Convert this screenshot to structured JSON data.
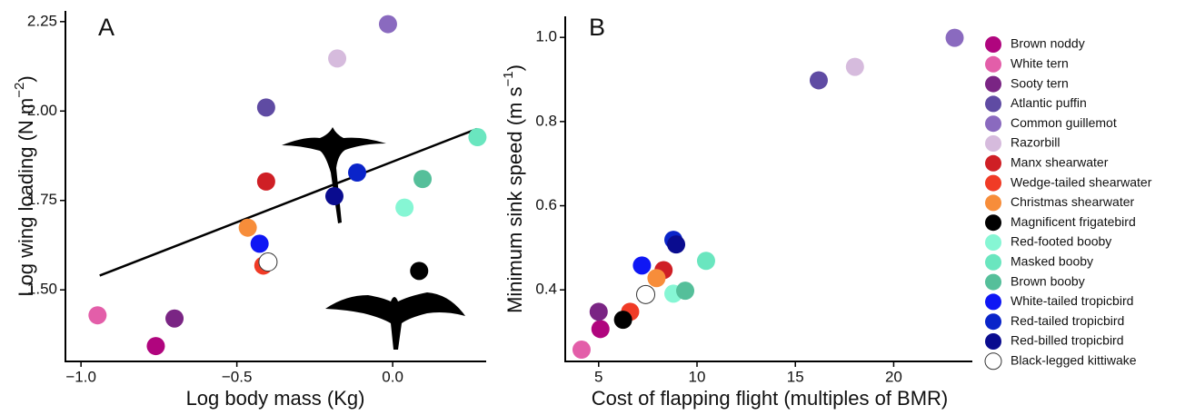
{
  "legend": {
    "entries": [
      {
        "name": "Brown noddy",
        "color": "#b0057e"
      },
      {
        "name": "White tern",
        "color": "#e35ea9"
      },
      {
        "name": "Sooty tern",
        "color": "#7a2584"
      },
      {
        "name": "Atlantic puffin",
        "color": "#5f4ba3"
      },
      {
        "name": "Common guillemot",
        "color": "#8a6abf"
      },
      {
        "name": "Razorbill",
        "color": "#d6bbdd"
      },
      {
        "name": "Manx shearwater",
        "color": "#cf1f25"
      },
      {
        "name": "Wedge-tailed shearwater",
        "color": "#f03b26"
      },
      {
        "name": "Christmas shearwater",
        "color": "#f78d3a"
      },
      {
        "name": "Magnificent frigatebird",
        "color": "#000000"
      },
      {
        "name": "Red-footed booby",
        "color": "#86f6d4"
      },
      {
        "name": "Masked booby",
        "color": "#6ae6bf"
      },
      {
        "name": "Brown booby",
        "color": "#55bf9a"
      },
      {
        "name": "White-tailed tropicbird",
        "color": "#0f17f4"
      },
      {
        "name": "Red-tailed tropicbird",
        "color": "#0a24c9"
      },
      {
        "name": "Red-billed tropicbird",
        "color": "#0a0c8f"
      },
      {
        "name": "Black-legged kittiwake",
        "color": "#ffffff"
      }
    ]
  },
  "chart_data": [
    {
      "type": "scatter",
      "panel_label": "A",
      "x_label": "Log body mass (Kg)",
      "y_label": "Log wing loading (N m",
      "y_label_sup": "−2",
      "y_label_end": ")",
      "x": [
        -0.76,
        -0.947,
        -0.7,
        -0.406,
        -0.015,
        -0.178,
        -0.406,
        -0.415,
        -0.465,
        0.085,
        0.038,
        0.272,
        0.096,
        -0.427,
        -0.114,
        -0.187,
        -0.4
      ],
      "values": [
        1.343,
        1.429,
        1.42,
        2.01,
        2.243,
        2.147,
        1.803,
        1.568,
        1.674,
        1.553,
        1.73,
        1.927,
        1.81,
        1.629,
        1.828,
        1.762,
        1.578
      ],
      "xlim": [
        -1.05,
        0.3
      ],
      "ylim": [
        1.3,
        2.28
      ],
      "xticks": [
        {
          "value": -1.0,
          "label": "−1.0"
        },
        {
          "value": -0.5,
          "label": "−0.5"
        },
        {
          "value": 0,
          "label": "0.0"
        }
      ],
      "yticks": [
        {
          "value": 1.5,
          "label": "1.50"
        },
        1.75,
        {
          "value": 2.0,
          "label": "2.00"
        },
        2.25
      ],
      "trend": {
        "x": [
          -0.94,
          0.27
        ],
        "y": [
          1.54,
          1.95
        ]
      }
    },
    {
      "type": "scatter",
      "panel_label": "B",
      "x_label": "Cost of flapping flight (multiples of BMR)",
      "y_label": "Minimum sink speed (m s",
      "y_label_sup": "−1",
      "y_label_end": ")",
      "x": [
        5.09,
        4.13,
        5.0,
        16.19,
        23.1,
        18.03,
        8.3,
        6.6,
        7.94,
        6.24,
        8.8,
        10.46,
        9.4,
        7.2,
        8.8,
        8.94,
        7.39
      ],
      "values": [
        0.307,
        0.258,
        0.348,
        0.898,
        0.999,
        0.93,
        0.447,
        0.348,
        0.428,
        0.329,
        0.391,
        0.469,
        0.398,
        0.458,
        0.519,
        0.508,
        0.389
      ],
      "xlim": [
        3.3,
        24
      ],
      "ylim": [
        0.23,
        1.05
      ],
      "xticks": [
        5,
        10,
        15,
        20
      ],
      "yticks": [
        0.4,
        0.6,
        0.8,
        {
          "value": 1.0,
          "label": "1.0"
        }
      ]
    }
  ]
}
